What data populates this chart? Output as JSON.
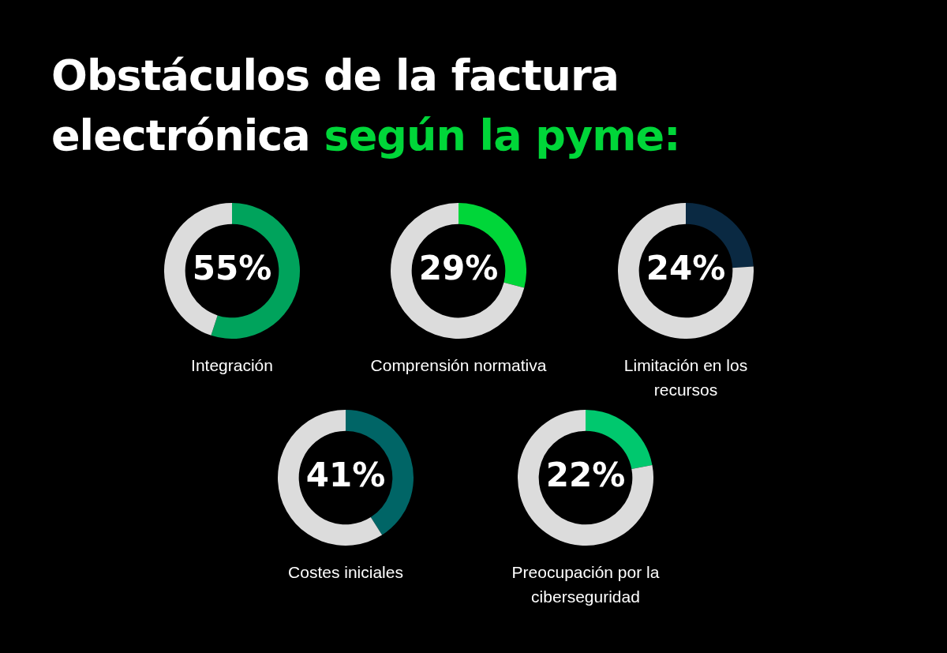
{
  "chart_data": [
    {
      "type": "other",
      "title": "Obstáculos de la factura electrónica",
      "subtitle": "según la pyme:"
    },
    {
      "type": "donut",
      "title": "Integración",
      "categories": [
        null,
        null
      ],
      "values": [
        55,
        45
      ],
      "colors": [
        "#00a35c",
        "#dcdcdc"
      ],
      "value_labels": [
        "55%",
        null
      ],
      "legend": false
    },
    {
      "type": "donut",
      "title": "Comprensión normativa",
      "categories": [
        null,
        null
      ],
      "values": [
        29,
        71
      ],
      "colors": [
        "#00d639",
        "#dcdcdc"
      ],
      "value_labels": [
        "29%",
        null
      ],
      "legend": false
    },
    {
      "type": "donut",
      "title": "Limitación en los recursos",
      "categories": [
        null,
        null
      ],
      "values": [
        24,
        76
      ],
      "colors": [
        "#0a2942",
        "#dcdcdc"
      ],
      "value_labels": [
        "24%",
        null
      ],
      "legend": false
    },
    {
      "type": "donut",
      "title": "Costes iniciales",
      "categories": [
        null,
        null
      ],
      "values": [
        41,
        59
      ],
      "colors": [
        "#006566",
        "#dcdcdc"
      ],
      "value_labels": [
        "41%",
        null
      ],
      "legend": false
    },
    {
      "type": "donut",
      "title": "Preocupación por la ciberseguridad",
      "categories": [
        null,
        null
      ],
      "values": [
        22,
        78
      ],
      "colors": [
        "#00c86e",
        "#dcdcdc"
      ],
      "value_labels": [
        "22%",
        null
      ],
      "legend": false
    }
  ]
}
